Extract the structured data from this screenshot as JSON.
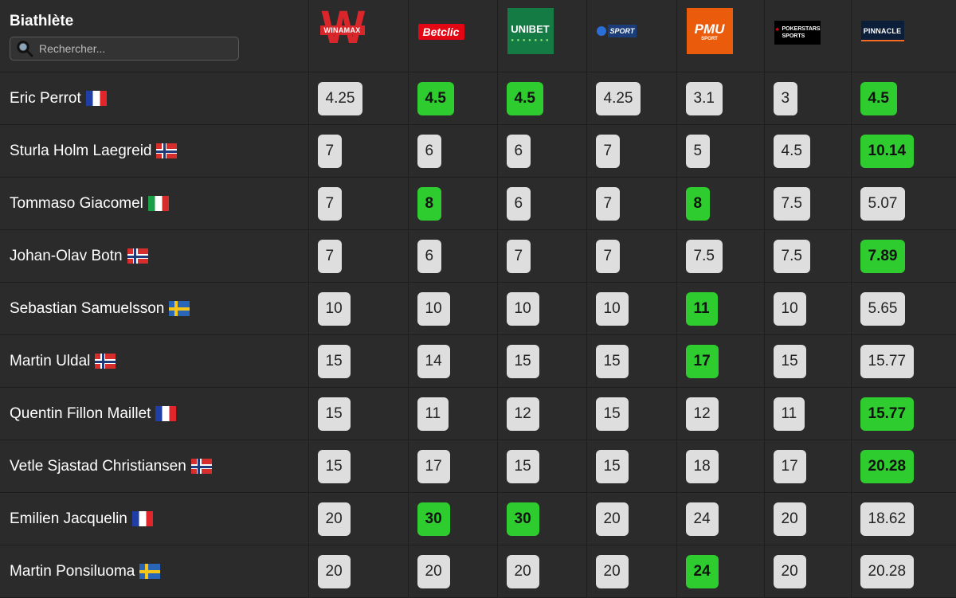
{
  "header": {
    "title": "Biathlète",
    "search_placeholder": "Rechercher..."
  },
  "bookmakers": [
    {
      "id": "winamax",
      "name": "WINAMAX"
    },
    {
      "id": "betclic",
      "name": "Betclic"
    },
    {
      "id": "unibet",
      "name": "UNIBET"
    },
    {
      "id": "sport",
      "name": "SPORT"
    },
    {
      "id": "pmu",
      "name": "PMU",
      "sub": "SPORT"
    },
    {
      "id": "pokerstars",
      "name": "POKERSTARS SPORTS"
    },
    {
      "id": "pinnacle",
      "name": "PINNACLE"
    }
  ],
  "colors": {
    "best_odd": "#2ecc2e",
    "normal_odd": "#dedede",
    "background": "#2b2b2b"
  },
  "rows": [
    {
      "name": "Eric Perrot",
      "flag": "fr",
      "odds": [
        "4.25",
        "4.5",
        "4.5",
        "4.25",
        "3.1",
        "3",
        "4.5"
      ],
      "best": [
        false,
        true,
        true,
        false,
        false,
        false,
        true
      ]
    },
    {
      "name": "Sturla Holm Laegreid",
      "flag": "no",
      "odds": [
        "7",
        "6",
        "6",
        "7",
        "5",
        "4.5",
        "10.14"
      ],
      "best": [
        false,
        false,
        false,
        false,
        false,
        false,
        true
      ]
    },
    {
      "name": "Tommaso Giacomel",
      "flag": "it",
      "odds": [
        "7",
        "8",
        "6",
        "7",
        "8",
        "7.5",
        "5.07"
      ],
      "best": [
        false,
        true,
        false,
        false,
        true,
        false,
        false
      ]
    },
    {
      "name": "Johan-Olav Botn",
      "flag": "no",
      "odds": [
        "7",
        "6",
        "7",
        "7",
        "7.5",
        "7.5",
        "7.89"
      ],
      "best": [
        false,
        false,
        false,
        false,
        false,
        false,
        true
      ]
    },
    {
      "name": "Sebastian Samuelsson",
      "flag": "se",
      "odds": [
        "10",
        "10",
        "10",
        "10",
        "11",
        "10",
        "5.65"
      ],
      "best": [
        false,
        false,
        false,
        false,
        true,
        false,
        false
      ]
    },
    {
      "name": "Martin Uldal",
      "flag": "no",
      "odds": [
        "15",
        "14",
        "15",
        "15",
        "17",
        "15",
        "15.77"
      ],
      "best": [
        false,
        false,
        false,
        false,
        true,
        false,
        false
      ]
    },
    {
      "name": "Quentin Fillon Maillet",
      "flag": "fr",
      "odds": [
        "15",
        "11",
        "12",
        "15",
        "12",
        "11",
        "15.77"
      ],
      "best": [
        false,
        false,
        false,
        false,
        false,
        false,
        true
      ]
    },
    {
      "name": "Vetle Sjastad Christiansen",
      "flag": "no",
      "odds": [
        "15",
        "17",
        "15",
        "15",
        "18",
        "17",
        "20.28"
      ],
      "best": [
        false,
        false,
        false,
        false,
        false,
        false,
        true
      ]
    },
    {
      "name": "Emilien Jacquelin",
      "flag": "fr",
      "odds": [
        "20",
        "30",
        "30",
        "20",
        "24",
        "20",
        "18.62"
      ],
      "best": [
        false,
        true,
        true,
        false,
        false,
        false,
        false
      ]
    },
    {
      "name": "Martin Ponsiluoma",
      "flag": "se",
      "odds": [
        "20",
        "20",
        "20",
        "20",
        "24",
        "20",
        "20.28"
      ],
      "best": [
        false,
        false,
        false,
        false,
        true,
        false,
        false
      ]
    }
  ]
}
